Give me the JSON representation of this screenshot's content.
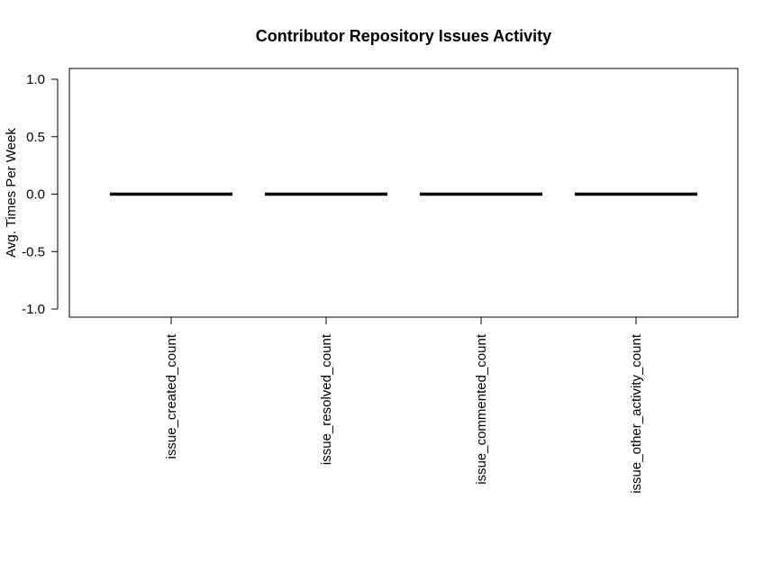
{
  "chart_data": {
    "type": "boxplot",
    "title": "Contributor Repository Issues Activity",
    "xlabel": "",
    "ylabel": "Avg. Times Per Week",
    "categories": [
      "issue_created_count",
      "issue_resolved_count",
      "issue_commented_count",
      "issue_other_activity_count"
    ],
    "values": [
      0,
      0,
      0,
      0
    ],
    "ylim": [
      -1.0,
      1.0
    ],
    "yticks": [
      "-1.0",
      "-0.5",
      "0.0",
      "0.5",
      "1.0"
    ],
    "ytick_values": [
      -1.0,
      -0.5,
      0.0,
      0.5,
      1.0
    ],
    "grid": false,
    "legend": "none",
    "colors": {
      "median_line": "#000000",
      "axis": "#000000"
    }
  }
}
